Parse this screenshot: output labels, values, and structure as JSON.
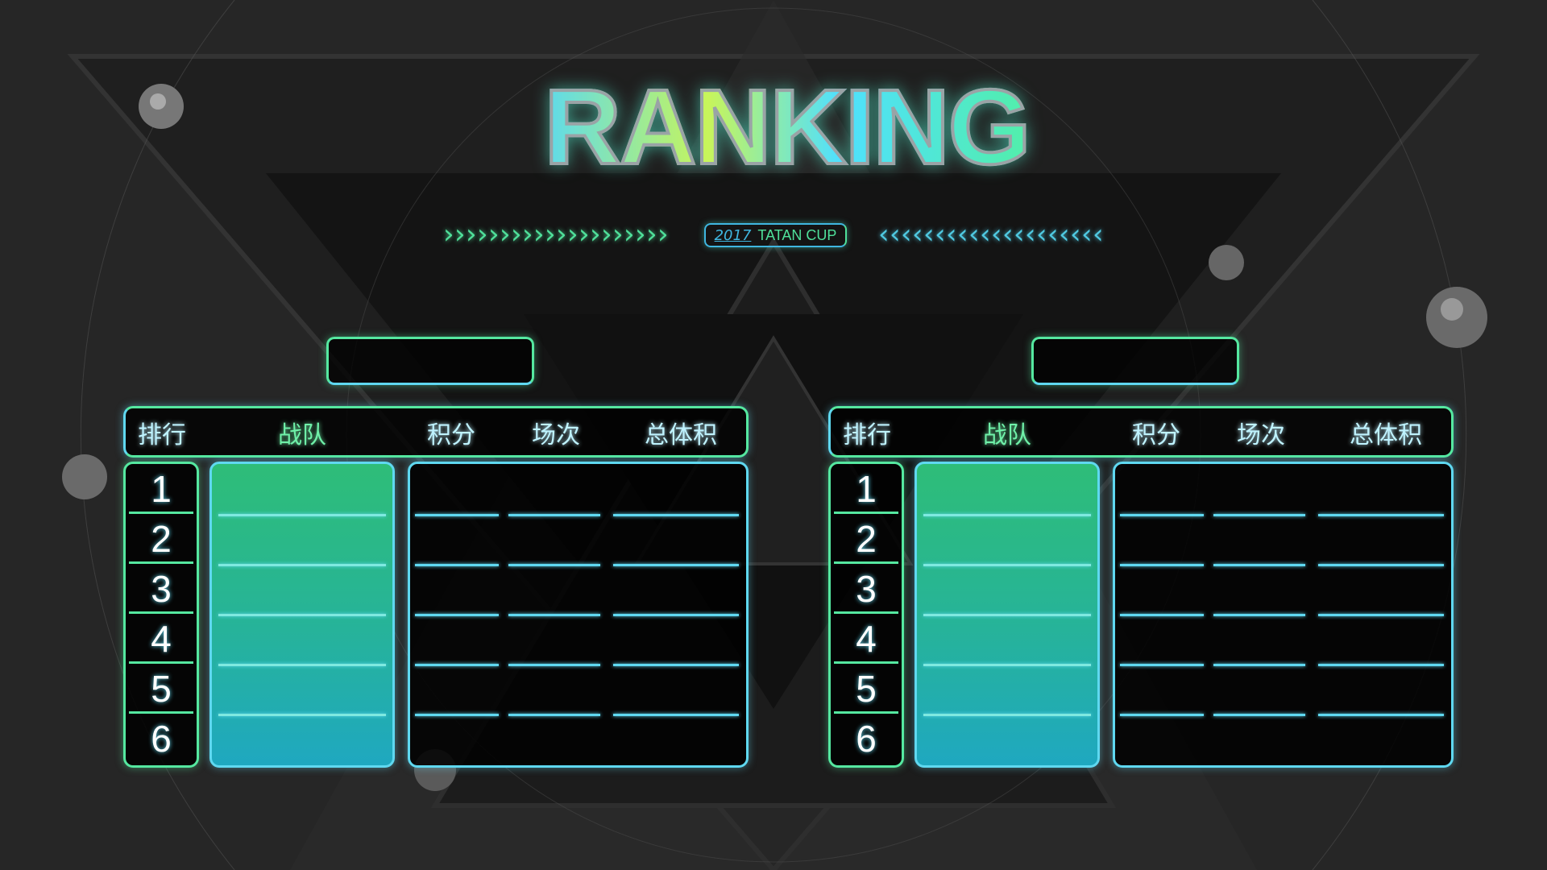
{
  "title": "RANKING",
  "badge": {
    "year": "2017",
    "name": "TATAN CUP"
  },
  "colors": {
    "green": "#55e8a0",
    "cyan": "#5fd8f0",
    "background": "#262626"
  },
  "tables": [
    {
      "headers": [
        "排行",
        "战队",
        "积分",
        "场次",
        "总体积"
      ],
      "group_name": "",
      "ranks": [
        "1",
        "2",
        "3",
        "4",
        "5",
        "6"
      ]
    },
    {
      "headers": [
        "排行",
        "战队",
        "积分",
        "场次",
        "总体积"
      ],
      "group_name": "",
      "ranks": [
        "1",
        "2",
        "3",
        "4",
        "5",
        "6"
      ]
    }
  ]
}
